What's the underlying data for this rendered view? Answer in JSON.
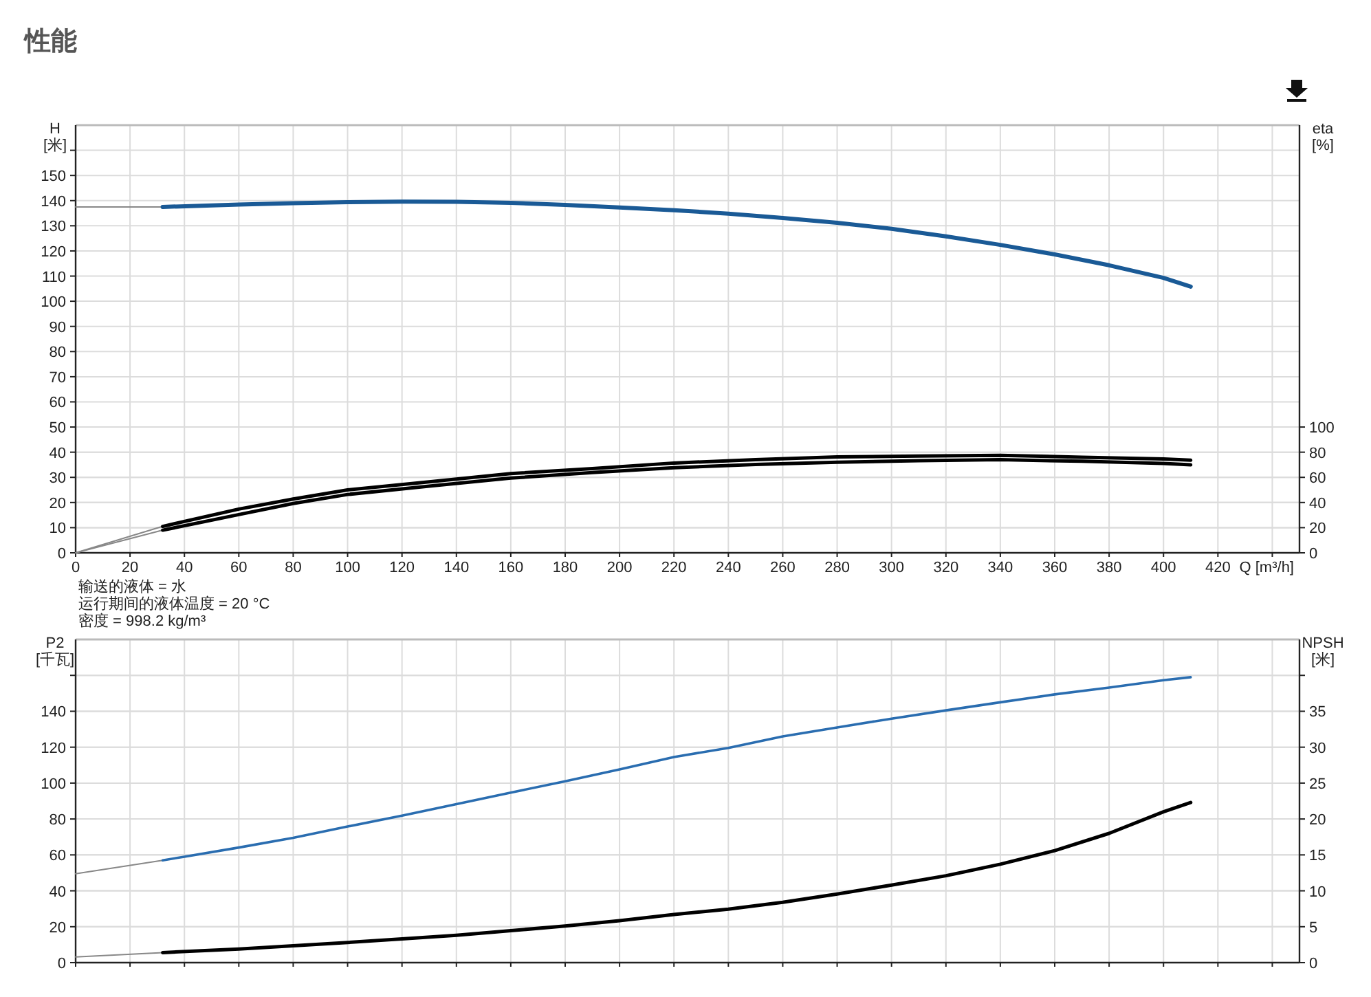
{
  "chart_data": [
    {
      "type": "line",
      "title": "性能",
      "xlabel": "Q [m³/h]",
      "ylabel": "H [米]",
      "y2label": "eta [%]",
      "grid": true,
      "xlim": [
        0,
        450
      ],
      "xticks": [
        0,
        20,
        40,
        60,
        80,
        100,
        120,
        140,
        160,
        180,
        200,
        220,
        240,
        260,
        280,
        300,
        320,
        340,
        360,
        380,
        400,
        420,
        {
          "value": 440,
          "label": null
        }
      ],
      "ylim": [
        0,
        170
      ],
      "yticks": [
        0,
        10,
        20,
        30,
        40,
        50,
        60,
        70,
        80,
        90,
        100,
        110,
        120,
        130,
        140,
        150,
        {
          "value": 160,
          "label": null
        }
      ],
      "y2lim": [
        0,
        340
      ],
      "y2ticks": [
        0,
        20,
        40,
        60,
        80,
        100
      ],
      "annotations": [
        "输送的液体 = 水",
        "运行期间的液体温度 = 20 °C",
        "密度 = 998.2 kg/m³"
      ],
      "series": [
        {
          "color": "#888888",
          "x": [
            0,
            32
          ],
          "values": [
            137.5,
            137.5
          ]
        },
        {
          "color": "#1a5a96",
          "x": [
            32,
            60,
            80,
            100,
            120,
            140,
            160,
            180,
            200,
            220,
            240,
            260,
            280,
            300,
            320,
            340,
            360,
            380,
            400,
            410
          ],
          "values": [
            137.5,
            138.4,
            139,
            139.4,
            139.6,
            139.5,
            139.1,
            138.3,
            137.3,
            136.2,
            134.8,
            133.1,
            131.2,
            128.8,
            125.8,
            122.4,
            118.6,
            114.3,
            109.3,
            105.8
          ]
        },
        {
          "color": "#888888",
          "axis": "y2",
          "x": [
            0,
            32
          ],
          "values": [
            0,
            21
          ]
        },
        {
          "color": "#000000",
          "axis": "y2",
          "x": [
            32,
            60,
            80,
            100,
            130,
            160,
            190,
            220,
            250,
            280,
            310,
            340,
            370,
            400,
            410
          ],
          "values": [
            21,
            34.8,
            42.8,
            50,
            56.5,
            63,
            67,
            71.4,
            74,
            76.2,
            76.9,
            77.5,
            76,
            74.6,
            73.6
          ]
        },
        {
          "color": "#888888",
          "axis": "y2",
          "x": [
            0,
            32
          ],
          "values": [
            0,
            18
          ]
        },
        {
          "color": "#000000",
          "axis": "y2",
          "x": [
            32,
            60,
            80,
            100,
            130,
            160,
            190,
            220,
            250,
            280,
            310,
            340,
            370,
            400,
            410
          ],
          "values": [
            18,
            30.4,
            39.2,
            46.4,
            53,
            59.4,
            63.8,
            67.7,
            70.3,
            72,
            73.2,
            74,
            72.8,
            71,
            69.9
          ]
        }
      ]
    },
    {
      "type": "line",
      "ylabel": "P2 [千瓦]",
      "y2label": "NPSH [米]",
      "grid": true,
      "tick_labels": "y",
      "xlim": [
        0,
        450
      ],
      "xticks": [
        0,
        20,
        40,
        60,
        80,
        100,
        120,
        140,
        160,
        180,
        200,
        220,
        240,
        260,
        280,
        300,
        320,
        340,
        360,
        380,
        400,
        420,
        440
      ],
      "ylim": [
        0,
        180
      ],
      "yticks": [
        0,
        20,
        40,
        60,
        80,
        100,
        120,
        140,
        {
          "value": 160,
          "label": null
        }
      ],
      "y2lim": [
        0,
        45
      ],
      "y2ticks": [
        0,
        5,
        10,
        15,
        20,
        25,
        30,
        35,
        {
          "value": 40,
          "label": null
        }
      ],
      "series": [
        {
          "color": "#888888",
          "x": [
            0,
            32
          ],
          "values": [
            49.5,
            57
          ]
        },
        {
          "color": "#2a6db0",
          "x": [
            32,
            40,
            60,
            80,
            100,
            120,
            140,
            160,
            180,
            200,
            220,
            240,
            260,
            280,
            300,
            320,
            340,
            360,
            380,
            400,
            410
          ],
          "values": [
            57,
            59,
            64.1,
            69.5,
            75.8,
            81.9,
            88.3,
            94.7,
            101,
            107.6,
            114.5,
            119.6,
            126,
            131,
            135.9,
            140.5,
            145,
            149.4,
            153.2,
            157.3,
            159
          ]
        },
        {
          "color": "#888888",
          "axis": "y2",
          "x": [
            0,
            32
          ],
          "values": [
            0.8,
            1.4
          ]
        },
        {
          "color": "#000000",
          "axis": "y2",
          "x": [
            32,
            60,
            80,
            100,
            120,
            140,
            160,
            180,
            200,
            220,
            240,
            260,
            280,
            300,
            320,
            340,
            360,
            380,
            400,
            410
          ],
          "values": [
            1.4,
            1.9,
            2.35,
            2.8,
            3.3,
            3.8,
            4.45,
            5.1,
            5.85,
            6.7,
            7.45,
            8.4,
            9.55,
            10.8,
            12.1,
            13.7,
            15.6,
            18,
            21,
            22.3
          ]
        }
      ]
    }
  ]
}
